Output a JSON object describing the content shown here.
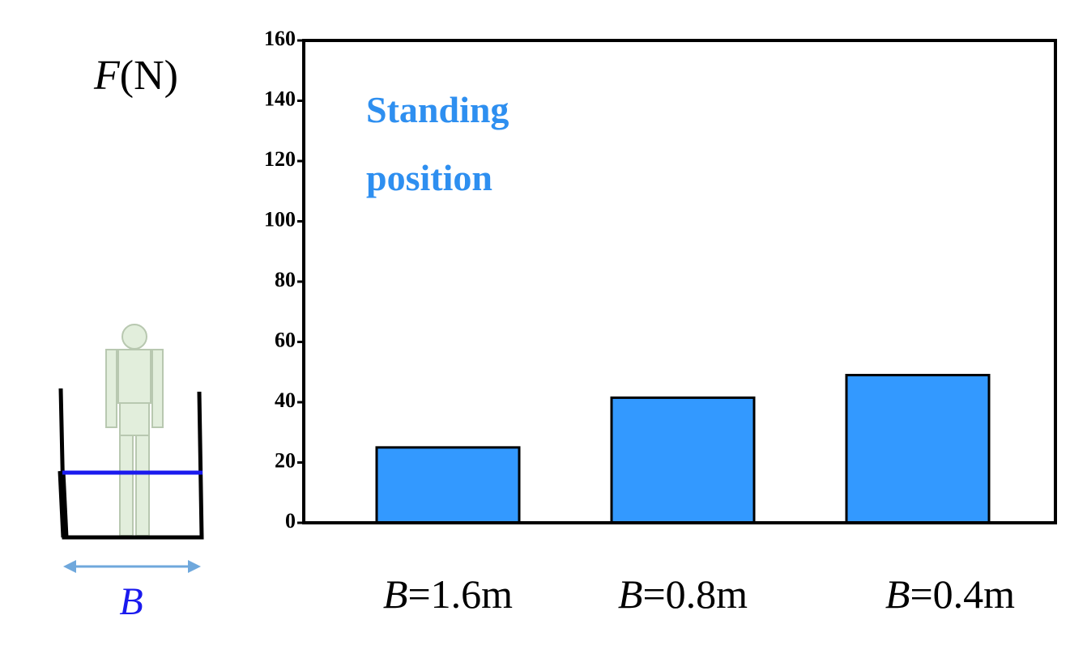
{
  "chart_data": {
    "type": "bar",
    "y_label": "F(N)",
    "annotation": "Standing position",
    "illustration_label": "B",
    "categories": [
      "B=1.6m",
      "B=0.8m",
      "B=0.4m"
    ],
    "values": [
      25,
      41.5,
      49
    ],
    "color": "#3399ff",
    "ylim": [
      0,
      160
    ],
    "yticks": [
      0,
      20,
      40,
      60,
      80,
      100,
      120,
      140,
      160
    ]
  }
}
